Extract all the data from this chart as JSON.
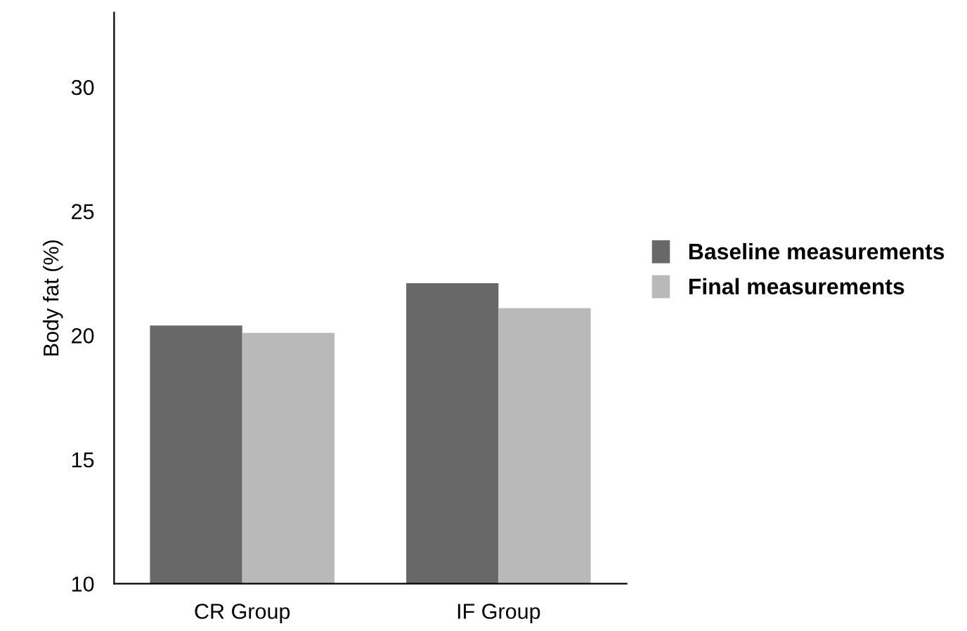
{
  "chart_data": {
    "type": "bar",
    "ylabel": "Body fat (%)",
    "categories": [
      "CR Group",
      "IF Group"
    ],
    "series": [
      {
        "name": "Baseline measurements",
        "color": "#686868",
        "values": [
          20.4,
          22.1
        ]
      },
      {
        "name": "Final measurements",
        "color": "#b9b9b9",
        "values": [
          20.1,
          21.1
        ]
      }
    ],
    "ylim": [
      10,
      33
    ],
    "yticks": [
      10,
      15,
      20,
      25,
      30
    ],
    "grid": false,
    "legend": "right"
  }
}
